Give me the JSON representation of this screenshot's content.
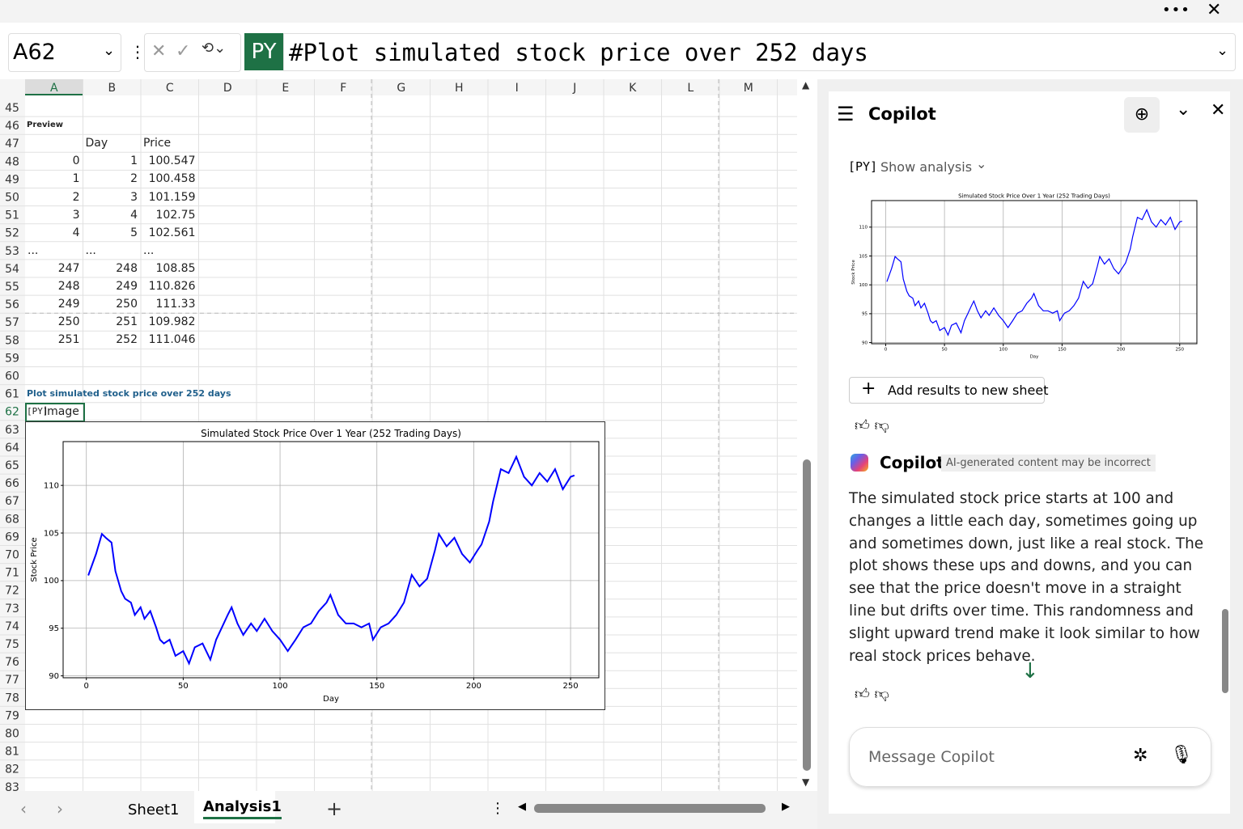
{
  "formula_bar": {
    "cell_ref": "A62",
    "badge": "PY",
    "formula": "#Plot simulated stock price over 252 days"
  },
  "sheet": {
    "columns": [
      "A",
      "B",
      "C",
      "D",
      "E",
      "F",
      "G",
      "H",
      "I",
      "J",
      "K",
      "L",
      "M"
    ],
    "rows": [
      45,
      46,
      47,
      48,
      49,
      50,
      51,
      52,
      53,
      54,
      55,
      56,
      57,
      58,
      59,
      60,
      61,
      62,
      63,
      64,
      65,
      66,
      67,
      68,
      69,
      70,
      71,
      72,
      73,
      74,
      75,
      76,
      77,
      78,
      79,
      80,
      81,
      82,
      83
    ],
    "preview_label": "Preview",
    "table": {
      "header": [
        "Day",
        "Price"
      ],
      "rows": [
        [
          0,
          1,
          100.547
        ],
        [
          1,
          2,
          100.458
        ],
        [
          2,
          3,
          101.159
        ],
        [
          3,
          4,
          102.75
        ],
        [
          4,
          5,
          102.561
        ],
        [
          "...",
          "...",
          "..."
        ],
        [
          247,
          248,
          108.85
        ],
        [
          248,
          249,
          110.826
        ],
        [
          249,
          250,
          111.33
        ],
        [
          250,
          251,
          109.982
        ],
        [
          251,
          252,
          111.046
        ]
      ]
    },
    "plot_label": "Plot simulated stock price over 252 days",
    "image_label": "Image",
    "tabs": [
      "Sheet1",
      "Analysis1"
    ]
  },
  "chart_data": {
    "type": "line",
    "title": "Simulated Stock Price Over 1 Year (252 Trading Days)",
    "xlabel": "Day",
    "ylabel": "Stock Price",
    "color": "#0000ff",
    "grid": true,
    "x": [
      1,
      5,
      8,
      10,
      13,
      15,
      18,
      20,
      23,
      25,
      28,
      30,
      33,
      36,
      38,
      40,
      43,
      46,
      50,
      53,
      56,
      60,
      64,
      67,
      70,
      73,
      75,
      78,
      81,
      85,
      88,
      92,
      96,
      100,
      104,
      108,
      112,
      116,
      120,
      124,
      126,
      130,
      134,
      138,
      142,
      146,
      148,
      152,
      156,
      160,
      164,
      168,
      172,
      176,
      180,
      182,
      186,
      190,
      194,
      198,
      202,
      204,
      208,
      210,
      214,
      218,
      222,
      226,
      230,
      234,
      238,
      242,
      246,
      250,
      252
    ],
    "values": [
      100.547,
      102.8,
      104.9,
      104.5,
      104,
      101,
      98.9,
      98.1,
      97.7,
      96.4,
      97.2,
      96,
      96.8,
      95.1,
      93.8,
      93.4,
      93.8,
      92.1,
      92.6,
      91.3,
      93,
      93.4,
      91.7,
      93.8,
      95.1,
      96.4,
      97.2,
      95.5,
      94.3,
      95.5,
      94.7,
      96,
      94.7,
      93.8,
      92.6,
      93.8,
      95.1,
      95.5,
      96.8,
      97.7,
      98.5,
      96.4,
      95.5,
      95.5,
      95.1,
      95.5,
      93.8,
      95.1,
      95.5,
      96.4,
      97.7,
      100.6,
      99.4,
      100.2,
      103.2,
      104.9,
      103.6,
      104.5,
      102.8,
      101.9,
      103.2,
      103.8,
      106.2,
      108.3,
      111.7,
      111.3,
      113,
      110.9,
      110,
      111.3,
      110.4,
      111.7,
      109.6,
      110.9,
      111.046
    ],
    "xlim": [
      -12,
      264.6
    ],
    "ylim": [
      89.8,
      114.6
    ],
    "xticks": [
      0,
      50,
      100,
      150,
      200,
      250
    ],
    "yticks": [
      90,
      95,
      100,
      105,
      110
    ]
  },
  "copilot": {
    "title": "Copilot",
    "show_analysis": "Show analysis",
    "add_results": "Add results to new sheet",
    "author": "Copilot",
    "disclaimer": "AI-generated content may be incorrect",
    "message": "The simulated stock price starts at 100 and changes a little each day, sometimes going up and sometimes down, just like a real stock. The plot shows these ups and downs, and you can see that the price doesn't move in a straight line but drifts over time. This randomness and slight upward trend make it look similar to how real stock prices behave.",
    "input_placeholder": "Message Copilot"
  }
}
